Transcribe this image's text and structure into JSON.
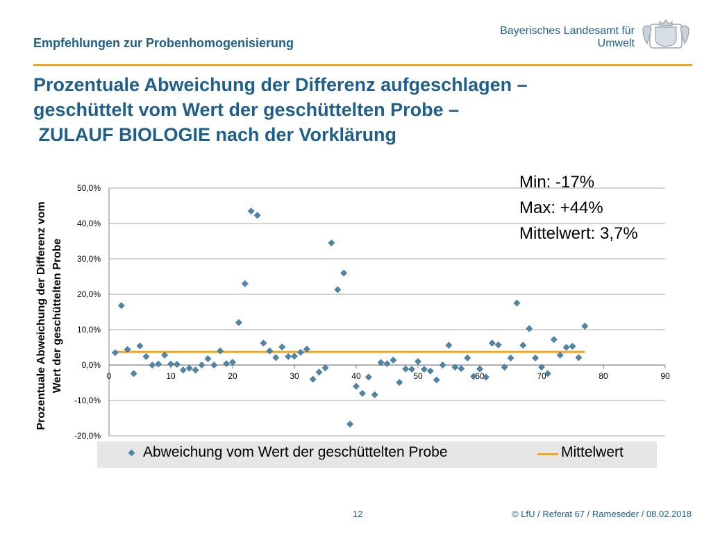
{
  "header": {
    "title": "Empfehlungen zur Probenhomogenisierung",
    "org_line1": "Bayerisches Landesamt für",
    "org_line2": "Umwelt",
    "accent_color": "#f0a818"
  },
  "slide_title": {
    "line1": "Prozentuale Abweichung der Differenz aufgeschlagen –",
    "line2": "geschüttelt vom Wert der geschüttelten Probe –",
    "line3": " ZULAUF BIOLOGIE nach der Vorklärung"
  },
  "stats": {
    "min": "Min: -17%",
    "max": "Max: +44%",
    "mean": "Mittelwert: 3,7%"
  },
  "footer": {
    "page": "12",
    "copyright": "© LfU / Referat 67 / Rameseder / 08.02.2018"
  },
  "chart_data": {
    "type": "scatter",
    "ylabel": "Prozentuale Abweichung der Differenz vom Wert der geschüttelten Probe",
    "ylabel_line1": "Prozentuale Abweichung der Differenz vom",
    "ylabel_line2": "Wert der geschüttelten Probe",
    "xlim": [
      0,
      90
    ],
    "ylim": [
      -20,
      50
    ],
    "x_ticks": [
      "0",
      "10",
      "20",
      "30",
      "40",
      "50",
      "60",
      "70",
      "80",
      "90"
    ],
    "y_ticks": [
      "50,0%",
      "40,0%",
      "30,0%",
      "20,0%",
      "10,0%",
      "0,0%",
      "-10,0%",
      "-20,0%"
    ],
    "grid": true,
    "legend_position": "bottom",
    "series": [
      {
        "name": "Abweichung vom Wert der geschüttelten Probe",
        "color": "#4f86a8",
        "marker": "diamond",
        "x": [
          1,
          2,
          3,
          4,
          5,
          6,
          7,
          8,
          9,
          10,
          11,
          12,
          13,
          14,
          15,
          16,
          17,
          18,
          19,
          20,
          21,
          22,
          23,
          24,
          25,
          26,
          27,
          28,
          29,
          30,
          31,
          32,
          33,
          34,
          35,
          36,
          37,
          38,
          39,
          40,
          41,
          42,
          43,
          44,
          45,
          46,
          47,
          48,
          49,
          50,
          51,
          52,
          53,
          54,
          55,
          56,
          57,
          58,
          59,
          60,
          61,
          62,
          63,
          64,
          65,
          66,
          67,
          68,
          69,
          70,
          71,
          72,
          73,
          74,
          75,
          76,
          77
        ],
        "y": [
          3.5,
          16.8,
          4.4,
          -2.4,
          5.4,
          2.4,
          0,
          0.3,
          2.8,
          0.3,
          0.2,
          -1.4,
          -0.9,
          -1.4,
          0,
          1.8,
          0,
          4,
          0.4,
          0.8,
          12,
          23,
          43.5,
          42.3,
          6.2,
          4,
          2.1,
          5.1,
          2.4,
          2.5,
          3.6,
          4.5,
          -4,
          -2,
          -0.8,
          34.5,
          21.3,
          26,
          -16.7,
          -6,
          -8,
          -3.4,
          -8.4,
          0.7,
          0.4,
          1.4,
          -4.9,
          -1.1,
          -1.2,
          1,
          -1.2,
          -1.7,
          -4.2,
          0,
          5.6,
          -0.6,
          -1,
          2,
          -3.2,
          -1.1,
          -3.4,
          6.2,
          5.7,
          -0.6,
          2,
          17.5,
          5.6,
          10.3,
          2,
          -0.6,
          -2.4,
          7.2,
          2.8,
          5,
          5.3,
          2.1,
          11
        ]
      },
      {
        "name": "Mittelwert",
        "color": "#f0a818",
        "type": "line",
        "x": [
          1,
          77
        ],
        "y": [
          3.7,
          3.7
        ]
      }
    ]
  }
}
